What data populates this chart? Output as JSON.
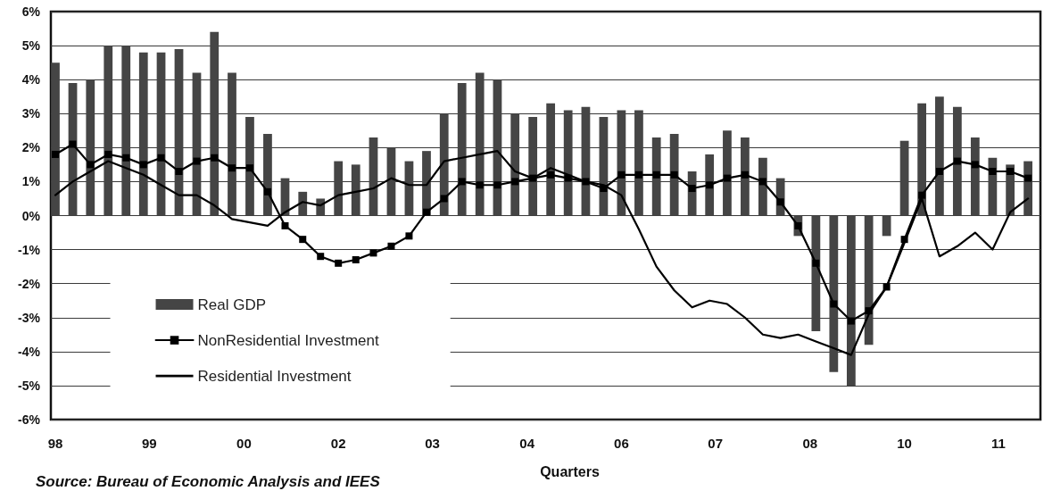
{
  "chart_data": {
    "type": "bar",
    "xlabel": "Quarters",
    "annotations": [
      "Source: Bureau of Economic Analysis and IEES"
    ],
    "x": [
      "1998-01",
      "1998-04",
      "1998-07",
      "1998-10",
      "1999-01",
      "1999-04",
      "1999-07",
      "1999-10",
      "2000-01",
      "2000-04",
      "2000-07",
      "2000-10",
      "2001-01",
      "2001-04",
      "2001-07",
      "2001-10",
      "2002-01",
      "2002-04",
      "2002-07",
      "2002-10",
      "2003-01",
      "2003-04",
      "2003-07",
      "2003-10",
      "2004-01",
      "2004-04",
      "2004-07",
      "2004-10",
      "2005-01",
      "2005-04",
      "2005-07",
      "2005-10",
      "2006-01",
      "2006-04",
      "2006-07",
      "2006-10",
      "2007-01",
      "2007-04",
      "2007-07",
      "2007-10",
      "2008-01",
      "2008-04",
      "2008-07",
      "2008-10",
      "2009-01",
      "2009-04",
      "2009-07",
      "2009-10",
      "2010-01",
      "2010-04",
      "2010-07",
      "2010-10",
      "2011-01",
      "2011-04",
      "2011-07",
      "2011-10"
    ],
    "xlim": [
      "1997-12-09",
      "2011-12-04"
    ],
    "xticks": [
      {
        "value": "1998-01",
        "label": "98"
      },
      {
        "value": "1999-05",
        "label": "99"
      },
      {
        "value": "2000-09",
        "label": "00"
      },
      {
        "value": "2002-01",
        "label": "02"
      },
      {
        "value": "2003-05",
        "label": "03"
      },
      {
        "value": "2004-09",
        "label": "04"
      },
      {
        "value": "2006-01",
        "label": "06"
      },
      {
        "value": "2007-05",
        "label": "07"
      },
      {
        "value": "2008-09",
        "label": "08"
      },
      {
        "value": "2010-01",
        "label": "10"
      },
      {
        "value": "2011-05",
        "label": "11"
      }
    ],
    "ylim": [
      -6,
      6
    ],
    "yticks": [
      {
        "value": -6,
        "label": "-6%"
      },
      {
        "value": -5,
        "label": "-5%"
      },
      {
        "value": -4,
        "label": "-4%"
      },
      {
        "value": -3,
        "label": "-3%"
      },
      {
        "value": -2,
        "label": "-2%"
      },
      {
        "value": -1,
        "label": "-1%"
      },
      {
        "value": 0,
        "label": "0%"
      },
      {
        "value": 1,
        "label": "1%"
      },
      {
        "value": 2,
        "label": "2%"
      },
      {
        "value": 3,
        "label": "3%"
      },
      {
        "value": 4,
        "label": "4%"
      },
      {
        "value": 5,
        "label": "5%"
      },
      {
        "value": 6,
        "label": "6%"
      }
    ],
    "grid": "y",
    "legend": "bottom left",
    "line_style": "solid",
    "series": [
      {
        "name": "Real GDP",
        "color": "#454545",
        "values": [
          4.5,
          3.9,
          4.0,
          5.0,
          5.0,
          4.8,
          4.8,
          4.9,
          4.2,
          5.4,
          4.2,
          2.9,
          2.4,
          1.1,
          0.7,
          0.5,
          1.6,
          1.5,
          2.3,
          2.0,
          1.6,
          1.9,
          3.0,
          3.9,
          4.2,
          4.0,
          3.0,
          2.9,
          3.3,
          3.1,
          3.2,
          2.9,
          3.1,
          3.1,
          2.3,
          2.4,
          1.3,
          1.8,
          2.5,
          2.3,
          1.7,
          1.1,
          -0.6,
          -3.4,
          -4.6,
          -5.0,
          -3.8,
          -0.6,
          2.2,
          3.3,
          3.5,
          3.2,
          2.3,
          1.7,
          1.5,
          1.6
        ]
      },
      {
        "name": "NonResidential Investment",
        "type": "line",
        "marker": "square",
        "color": "#000000",
        "values": [
          1.8,
          2.1,
          1.5,
          1.8,
          1.7,
          1.5,
          1.7,
          1.3,
          1.6,
          1.7,
          1.4,
          1.4,
          0.7,
          -0.3,
          -0.7,
          -1.2,
          -1.4,
          -1.3,
          -1.1,
          -0.9,
          -0.6,
          0.1,
          0.5,
          1.0,
          0.9,
          0.9,
          1.0,
          1.1,
          1.2,
          1.1,
          1.0,
          0.8,
          1.2,
          1.2,
          1.2,
          1.2,
          0.8,
          0.9,
          1.1,
          1.2,
          1.0,
          0.4,
          -0.3,
          -1.4,
          -2.6,
          -3.1,
          -2.8,
          -2.1,
          -0.7,
          0.6,
          1.3,
          1.6,
          1.5,
          1.3,
          1.3,
          1.1
        ]
      },
      {
        "name": "Residential Investment",
        "type": "line",
        "marker": "none",
        "color": "#000000",
        "values": [
          0.6,
          1.0,
          1.3,
          1.6,
          1.4,
          1.2,
          0.9,
          0.6,
          0.6,
          0.3,
          -0.1,
          -0.2,
          -0.3,
          0.1,
          0.4,
          0.3,
          0.6,
          0.7,
          0.8,
          1.1,
          0.9,
          0.9,
          1.6,
          1.7,
          1.8,
          1.9,
          1.3,
          1.1,
          1.4,
          1.2,
          1.0,
          0.9,
          0.6,
          -0.4,
          -1.5,
          -2.2,
          -2.7,
          -2.5,
          -2.6,
          -3.0,
          -3.5,
          -3.6,
          -3.5,
          -3.7,
          -3.9,
          -4.1,
          -2.9,
          -2.1,
          -0.8,
          0.5,
          -1.2,
          -0.9,
          -0.5,
          -1.0,
          0.1,
          0.5
        ]
      }
    ]
  }
}
